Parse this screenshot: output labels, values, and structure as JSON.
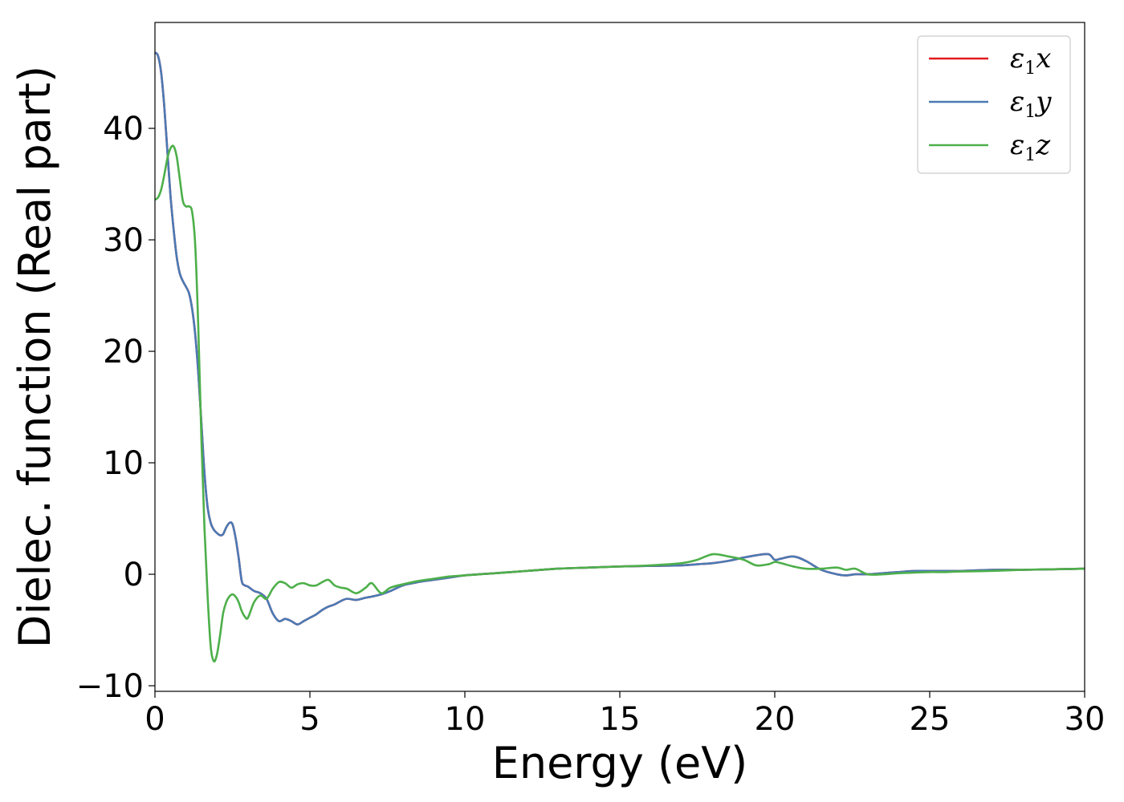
{
  "chart_data": {
    "type": "line",
    "title": "",
    "xlabel": "Energy (eV)",
    "ylabel": "Dielec. function (Real part)",
    "xlim": [
      0,
      30
    ],
    "ylim": [
      -10.5,
      49.5
    ],
    "xticks": [
      0,
      5,
      10,
      15,
      20,
      25,
      30
    ],
    "xtick_labels": [
      "0",
      "5",
      "10",
      "15",
      "20",
      "25",
      "30"
    ],
    "yticks": [
      -10,
      0,
      10,
      20,
      30,
      40
    ],
    "ytick_labels": [
      "−10",
      "0",
      "10",
      "20",
      "30",
      "40"
    ],
    "grid": false,
    "legend_position": "top-right",
    "series": [
      {
        "name": "ε₁x",
        "legend_base": "ε",
        "legend_sub": "1",
        "legend_var": "x",
        "color": "#e41a1c",
        "x": [
          0,
          0.1,
          0.2,
          0.3,
          0.4,
          0.5,
          0.6,
          0.7,
          0.8,
          0.9,
          1.0,
          1.1,
          1.2,
          1.3,
          1.4,
          1.5,
          1.6,
          1.7,
          1.8,
          1.9,
          2.0,
          2.1,
          2.2,
          2.3,
          2.4,
          2.5,
          2.6,
          2.7,
          2.8,
          2.9,
          3.0,
          3.2,
          3.4,
          3.6,
          3.8,
          4.0,
          4.2,
          4.4,
          4.6,
          4.8,
          5.0,
          5.2,
          5.4,
          5.6,
          5.8,
          6.0,
          6.2,
          6.5,
          6.8,
          7.0,
          7.3,
          7.6,
          8.0,
          8.5,
          9.0,
          9.5,
          10,
          11,
          12,
          13,
          14,
          15,
          16,
          17,
          17.5,
          18,
          18.5,
          19,
          19.4,
          19.8,
          20,
          20.2,
          20.6,
          21,
          21.5,
          22,
          22.3,
          22.6,
          23,
          23.5,
          24,
          24.5,
          25,
          25.5,
          26,
          27,
          28,
          29,
          30
        ],
        "y": [
          46.8,
          46.5,
          45,
          42,
          38,
          34,
          31,
          28.5,
          27,
          26.3,
          25.8,
          25.2,
          23.8,
          21.5,
          18,
          13.5,
          9,
          6,
          4.6,
          4.0,
          3.7,
          3.5,
          3.6,
          4.2,
          4.6,
          4.5,
          3.3,
          1.5,
          -0.6,
          -1.0,
          -1.1,
          -1.5,
          -1.7,
          -2.2,
          -3.5,
          -4.2,
          -4.0,
          -4.2,
          -4.5,
          -4.2,
          -3.9,
          -3.6,
          -3.2,
          -2.9,
          -2.7,
          -2.4,
          -2.2,
          -2.3,
          -2.1,
          -2.0,
          -1.8,
          -1.5,
          -1.0,
          -0.7,
          -0.5,
          -0.3,
          -0.1,
          0.1,
          0.3,
          0.5,
          0.6,
          0.7,
          0.75,
          0.8,
          0.9,
          1.0,
          1.2,
          1.5,
          1.7,
          1.8,
          1.3,
          1.4,
          1.6,
          1.2,
          0.4,
          0.0,
          -0.1,
          0.0,
          0.0,
          0.1,
          0.2,
          0.3,
          0.3,
          0.3,
          0.3,
          0.4,
          0.4,
          0.45,
          0.5
        ]
      },
      {
        "name": "ε₁y",
        "legend_base": "ε",
        "legend_sub": "1",
        "legend_var": "y",
        "color": "#4a7ab5",
        "x": [
          0,
          0.1,
          0.2,
          0.3,
          0.4,
          0.5,
          0.6,
          0.7,
          0.8,
          0.9,
          1.0,
          1.1,
          1.2,
          1.3,
          1.4,
          1.5,
          1.6,
          1.7,
          1.8,
          1.9,
          2.0,
          2.1,
          2.2,
          2.3,
          2.4,
          2.5,
          2.6,
          2.7,
          2.8,
          2.9,
          3.0,
          3.2,
          3.4,
          3.6,
          3.8,
          4.0,
          4.2,
          4.4,
          4.6,
          4.8,
          5.0,
          5.2,
          5.4,
          5.6,
          5.8,
          6.0,
          6.2,
          6.5,
          6.8,
          7.0,
          7.3,
          7.6,
          8.0,
          8.5,
          9.0,
          9.5,
          10,
          11,
          12,
          13,
          14,
          15,
          16,
          17,
          17.5,
          18,
          18.5,
          19,
          19.4,
          19.8,
          20,
          20.2,
          20.6,
          21,
          21.5,
          22,
          22.3,
          22.6,
          23,
          23.5,
          24,
          24.5,
          25,
          25.5,
          26,
          27,
          28,
          29,
          30
        ],
        "y": [
          46.8,
          46.5,
          45,
          42,
          38,
          34,
          31,
          28.5,
          27,
          26.3,
          25.8,
          25.2,
          23.8,
          21.5,
          18,
          13.5,
          9,
          6,
          4.6,
          4.0,
          3.7,
          3.5,
          3.6,
          4.2,
          4.6,
          4.5,
          3.3,
          1.5,
          -0.6,
          -1.0,
          -1.1,
          -1.5,
          -1.7,
          -2.2,
          -3.5,
          -4.2,
          -4.0,
          -4.2,
          -4.5,
          -4.2,
          -3.9,
          -3.6,
          -3.2,
          -2.9,
          -2.7,
          -2.4,
          -2.2,
          -2.3,
          -2.1,
          -2.0,
          -1.8,
          -1.5,
          -1.0,
          -0.7,
          -0.5,
          -0.3,
          -0.1,
          0.1,
          0.3,
          0.5,
          0.6,
          0.7,
          0.75,
          0.8,
          0.9,
          1.0,
          1.2,
          1.5,
          1.7,
          1.8,
          1.3,
          1.4,
          1.6,
          1.2,
          0.4,
          0.0,
          -0.1,
          0.0,
          0.0,
          0.1,
          0.2,
          0.3,
          0.3,
          0.3,
          0.3,
          0.4,
          0.4,
          0.45,
          0.5
        ]
      },
      {
        "name": "ε₁z",
        "legend_base": "ε",
        "legend_sub": "1",
        "legend_var": "z",
        "color": "#4daf4a",
        "x": [
          0,
          0.1,
          0.2,
          0.3,
          0.4,
          0.5,
          0.6,
          0.7,
          0.8,
          0.9,
          1.0,
          1.1,
          1.2,
          1.3,
          1.4,
          1.5,
          1.6,
          1.7,
          1.8,
          1.9,
          2.0,
          2.1,
          2.2,
          2.3,
          2.4,
          2.5,
          2.6,
          2.7,
          2.8,
          2.9,
          3.0,
          3.2,
          3.4,
          3.6,
          3.8,
          4.0,
          4.2,
          4.4,
          4.6,
          4.8,
          5.0,
          5.2,
          5.4,
          5.6,
          5.8,
          6.0,
          6.2,
          6.5,
          6.8,
          7.0,
          7.3,
          7.6,
          8.0,
          8.5,
          9.0,
          9.5,
          10,
          11,
          12,
          13,
          14,
          15,
          16,
          17,
          17.5,
          18,
          18.5,
          19,
          19.4,
          19.8,
          20,
          20.2,
          20.6,
          21,
          21.5,
          22,
          22.3,
          22.6,
          23,
          23.5,
          24,
          24.5,
          25,
          25.5,
          26,
          27,
          28,
          29,
          30
        ],
        "y": [
          33.6,
          33.8,
          34.5,
          35.8,
          37.3,
          38.2,
          38.4,
          37.5,
          35.5,
          33.5,
          33.0,
          33.0,
          32.5,
          29.5,
          22,
          12,
          4,
          -2,
          -6.5,
          -7.8,
          -7.2,
          -5.5,
          -3.5,
          -2.5,
          -2.0,
          -1.8,
          -2.0,
          -2.5,
          -3.3,
          -3.8,
          -3.9,
          -2.5,
          -1.9,
          -2.2,
          -1.3,
          -0.7,
          -0.8,
          -1.2,
          -0.9,
          -0.8,
          -1.0,
          -1.0,
          -0.7,
          -0.5,
          -1.0,
          -1.2,
          -1.3,
          -1.7,
          -1.2,
          -0.8,
          -1.7,
          -1.2,
          -0.9,
          -0.6,
          -0.4,
          -0.2,
          -0.1,
          0.1,
          0.3,
          0.5,
          0.6,
          0.7,
          0.8,
          1.0,
          1.3,
          1.8,
          1.6,
          1.3,
          0.8,
          0.9,
          1.1,
          1.0,
          0.7,
          0.5,
          0.5,
          0.6,
          0.4,
          0.5,
          0.0,
          0.0,
          0.1,
          0.15,
          0.2,
          0.2,
          0.25,
          0.3,
          0.4,
          0.45,
          0.5
        ]
      }
    ]
  }
}
